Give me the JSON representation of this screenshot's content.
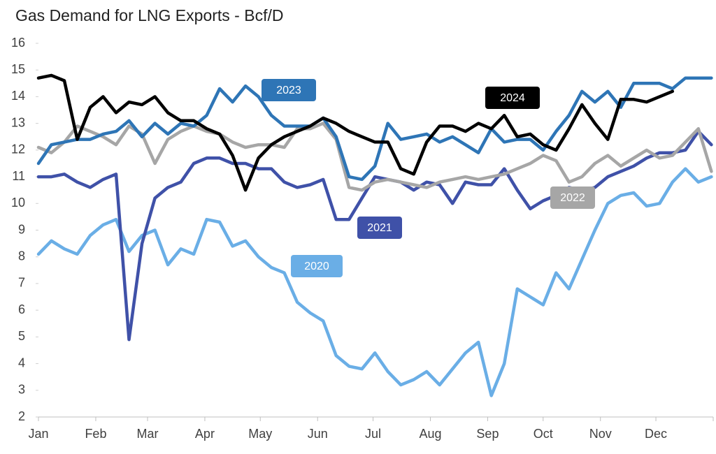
{
  "chart_data": {
    "type": "line",
    "title": "Gas Demand for LNG Exports - Bcf/D",
    "x": [
      0,
      7,
      14,
      21,
      28,
      35,
      42,
      49,
      56,
      63,
      70,
      77,
      84,
      91,
      98,
      105,
      112,
      119,
      126,
      133,
      140,
      147,
      154,
      161,
      168,
      175,
      182,
      189,
      196,
      203,
      210,
      217,
      224,
      231,
      238,
      245,
      252,
      259,
      266,
      273,
      280,
      287,
      294,
      301,
      308,
      315,
      322,
      329,
      336,
      343,
      350,
      357,
      364
    ],
    "xlim": [
      0,
      365
    ],
    "xticks": [
      {
        "value": 0,
        "label": "Jan"
      },
      {
        "value": 31,
        "label": "Feb"
      },
      {
        "value": 59,
        "label": "Mar"
      },
      {
        "value": 90,
        "label": "Apr"
      },
      {
        "value": 120,
        "label": "May"
      },
      {
        "value": 151,
        "label": "Jun"
      },
      {
        "value": 181,
        "label": "Jul"
      },
      {
        "value": 212,
        "label": "Aug"
      },
      {
        "value": 243,
        "label": "Sep"
      },
      {
        "value": 273,
        "label": "Oct"
      },
      {
        "value": 304,
        "label": "Nov"
      },
      {
        "value": 334,
        "label": "Dec"
      }
    ],
    "ylim": [
      2,
      16
    ],
    "yticks": [
      2,
      3,
      4,
      5,
      6,
      7,
      8,
      9,
      10,
      11,
      12,
      13,
      14,
      15,
      16
    ],
    "series": [
      {
        "name": "2020",
        "color": "#6aaee6",
        "values": [
          8.1,
          8.6,
          8.3,
          8.1,
          8.8,
          9.2,
          9.4,
          8.2,
          8.8,
          9.0,
          7.7,
          8.3,
          8.1,
          9.4,
          9.3,
          8.4,
          8.6,
          8.0,
          7.6,
          7.4,
          6.3,
          5.9,
          5.6,
          4.3,
          3.9,
          3.8,
          4.4,
          3.7,
          3.2,
          3.4,
          3.7,
          3.2,
          3.8,
          4.4,
          4.8,
          2.8,
          4.0,
          6.8,
          6.5,
          6.2,
          7.4,
          6.8,
          7.9,
          9.0,
          10.0,
          10.3,
          10.4,
          9.9,
          10.0,
          10.8,
          11.3,
          10.8,
          11.0
        ]
      },
      {
        "name": "2021",
        "color": "#3f51a8",
        "values": [
          11.0,
          11.0,
          11.1,
          10.8,
          10.6,
          10.9,
          11.1,
          4.9,
          8.5,
          10.2,
          10.6,
          10.8,
          11.5,
          11.7,
          11.7,
          11.5,
          11.5,
          11.3,
          11.3,
          10.8,
          10.6,
          10.7,
          10.9,
          9.4,
          9.4,
          10.2,
          11.0,
          10.9,
          10.8,
          10.5,
          10.8,
          10.7,
          10.0,
          10.8,
          10.7,
          10.7,
          11.3,
          10.5,
          9.8,
          10.1,
          10.3,
          10.6,
          10.5,
          10.6,
          11.0,
          11.2,
          11.4,
          11.7,
          11.9,
          11.9,
          12.0,
          12.7,
          12.2
        ]
      },
      {
        "name": "2022",
        "color": "#a6a6a6",
        "values": [
          12.1,
          11.9,
          12.3,
          12.9,
          12.7,
          12.5,
          12.2,
          12.9,
          12.6,
          11.5,
          12.4,
          12.7,
          12.9,
          12.7,
          12.6,
          12.3,
          12.1,
          12.2,
          12.2,
          12.1,
          12.8,
          12.8,
          13.0,
          12.4,
          10.6,
          10.5,
          10.8,
          10.9,
          10.8,
          10.7,
          10.6,
          10.8,
          10.9,
          11.0,
          10.9,
          11.0,
          11.1,
          11.3,
          11.5,
          11.8,
          11.6,
          10.8,
          11.0,
          11.5,
          11.8,
          11.4,
          11.7,
          12.0,
          11.7,
          11.8,
          12.3,
          12.8,
          11.2
        ]
      },
      {
        "name": "2023",
        "color": "#2e75b6",
        "values": [
          11.5,
          12.2,
          12.3,
          12.4,
          12.4,
          12.6,
          12.7,
          13.1,
          12.5,
          13.0,
          12.6,
          13.0,
          12.9,
          13.3,
          14.3,
          13.8,
          14.4,
          14.0,
          13.3,
          12.9,
          12.9,
          12.9,
          13.2,
          12.5,
          11.0,
          10.9,
          11.4,
          13.0,
          12.4,
          12.5,
          12.6,
          12.3,
          12.5,
          12.2,
          11.9,
          12.8,
          12.3,
          12.4,
          12.4,
          12.0,
          12.7,
          13.3,
          14.2,
          13.8,
          14.2,
          13.6,
          14.5,
          14.5,
          14.5,
          14.3,
          14.7,
          14.7,
          14.7
        ]
      },
      {
        "name": "2024",
        "color": "#000000",
        "values": [
          14.7,
          14.8,
          14.6,
          12.4,
          13.6,
          14.0,
          13.4,
          13.8,
          13.7,
          14.0,
          13.4,
          13.1,
          13.1,
          12.8,
          12.6,
          11.8,
          10.5,
          11.7,
          12.2,
          12.5,
          12.7,
          12.9,
          13.2,
          13.0,
          12.7,
          12.5,
          12.3,
          12.3,
          11.3,
          11.1,
          12.3,
          12.9,
          12.9,
          12.7,
          13.0,
          12.8,
          13.3,
          12.5,
          12.6,
          12.2,
          12.0,
          12.8,
          13.7,
          13.0,
          12.4,
          13.9,
          13.9,
          13.8,
          14.0,
          14.2,
          null,
          null,
          null
        ]
      }
    ]
  }
}
